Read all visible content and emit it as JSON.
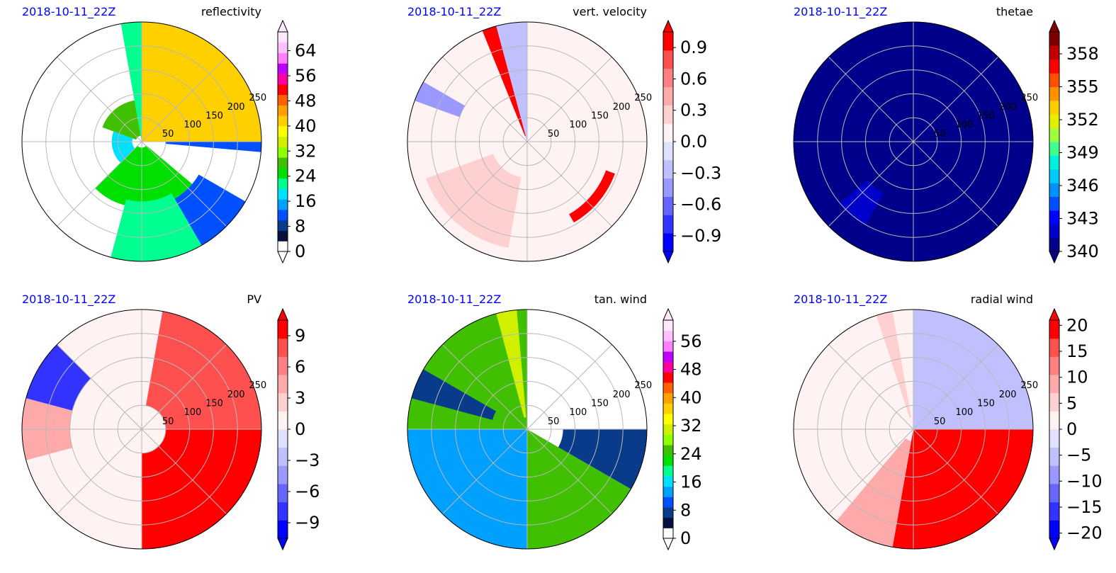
{
  "chart_data": [
    {
      "type": "heatmap",
      "projection": "polar",
      "title": "reflectivity",
      "date": "2018-10-11_22Z",
      "radial_ticks": [
        "50",
        "100",
        "150",
        "200",
        "250"
      ],
      "colorbar": {
        "ticks": [
          "0",
          "8",
          "16",
          "24",
          "32",
          "40",
          "48",
          "56",
          "64"
        ],
        "range": [
          0,
          70
        ],
        "extend": "both"
      },
      "colormap": [
        "#ffffff",
        "#081040",
        "#0a3a8a",
        "#0050ff",
        "#00a0ff",
        "#00e0ff",
        "#00ff90",
        "#00e000",
        "#40c000",
        "#90ff00",
        "#d0f000",
        "#ffff00",
        "#ffd000",
        "#ffa000",
        "#ff6000",
        "#ff0000",
        "#ff00a0",
        "#c000ff",
        "#ff80ff",
        "#ffc0ff",
        "#ffe8ff"
      ],
      "fields": [
        {
          "th1": 0,
          "th2": 90,
          "r1": 0.0,
          "r2": 1.0,
          "value": 40
        },
        {
          "th1": 90,
          "th2": 100,
          "r1": 0.0,
          "r2": 1.0,
          "value": 22
        },
        {
          "th1": 100,
          "th2": 160,
          "r1": 0.05,
          "r2": 0.35,
          "value": 28
        },
        {
          "th1": 160,
          "th2": 240,
          "r1": 0.08,
          "r2": 0.25,
          "value": 18
        },
        {
          "th1": 225,
          "th2": 320,
          "r1": 0.05,
          "r2": 0.55,
          "value": 24
        },
        {
          "th1": 255,
          "th2": 300,
          "r1": 0.5,
          "r2": 1.0,
          "value": 20
        },
        {
          "th1": 300,
          "th2": 330,
          "r1": 0.55,
          "r2": 1.0,
          "value": 12
        },
        {
          "th1": 355,
          "th2": 360,
          "r1": 0.2,
          "r2": 1.0,
          "value": 10
        }
      ]
    },
    {
      "type": "heatmap",
      "projection": "polar",
      "title": "vert. velocity",
      "date": "2018-10-11_22Z",
      "radial_ticks": [
        "50",
        "100",
        "150",
        "200",
        "250"
      ],
      "colorbar": {
        "ticks": [
          "0.9",
          "0.6",
          "0.3",
          "0.0",
          "−0.3",
          "−0.6",
          "−0.9"
        ],
        "range": [
          -1.05,
          1.05
        ],
        "extend": "both"
      },
      "colormap": [
        "#0000ff",
        "#3333ff",
        "#6666ff",
        "#9999ff",
        "#c0c0ff",
        "#e0e0ff",
        "#fff2f2",
        "#ffd0d0",
        "#ffaaaa",
        "#ff8080",
        "#ff5050",
        "#ff0000"
      ],
      "fields": [
        {
          "th1": 0,
          "th2": 360,
          "r1": 0.0,
          "r2": 1.0,
          "value": 0.05
        },
        {
          "th1": 90,
          "th2": 110,
          "r1": 0.0,
          "r2": 1.0,
          "value": -0.2
        },
        {
          "th1": 105,
          "th2": 112,
          "r1": 0.05,
          "r2": 1.0,
          "value": 0.9
        },
        {
          "th1": 150,
          "th2": 160,
          "r1": 0.6,
          "r2": 1.0,
          "value": -0.5
        },
        {
          "th1": 300,
          "th2": 340,
          "r1": 0.7,
          "r2": 0.78,
          "value": 0.9
        },
        {
          "th1": 200,
          "th2": 260,
          "r1": 0.3,
          "r2": 0.9,
          "value": 0.2
        }
      ]
    },
    {
      "type": "heatmap",
      "projection": "polar",
      "title": "thetae",
      "date": "2018-10-11_22Z",
      "radial_ticks": [
        "50",
        "100",
        "150",
        "200",
        "250"
      ],
      "colorbar": {
        "ticks": [
          "340",
          "343",
          "346",
          "349",
          "352",
          "355",
          "358"
        ],
        "range": [
          340,
          360
        ],
        "extend": "both"
      },
      "colormap": [
        "#00008a",
        "#0000cd",
        "#0000ff",
        "#0050ff",
        "#0090ff",
        "#00c8ff",
        "#00f0e0",
        "#40ff90",
        "#a0ff40",
        "#e0f000",
        "#ffd000",
        "#ff9000",
        "#ff5000",
        "#ff0000",
        "#c00000",
        "#800000"
      ],
      "fields": [
        {
          "th1": 0,
          "th2": 360,
          "r1": 0.0,
          "r2": 1.0,
          "value": 340.2
        },
        {
          "th1": 220,
          "th2": 240,
          "r1": 0.5,
          "r2": 0.8,
          "value": 341.5
        },
        {
          "th1": 340,
          "th2": 355,
          "r1": 0.35,
          "r2": 1.0,
          "value": 341.0
        }
      ]
    },
    {
      "type": "heatmap",
      "projection": "polar",
      "title": "PV",
      "date": "2018-10-11_22Z",
      "radial_ticks": [
        "50",
        "100",
        "150",
        "200",
        "250"
      ],
      "colorbar": {
        "ticks": [
          "9",
          "6",
          "3",
          "0",
          "−3",
          "−6",
          "−9"
        ],
        "range": [
          -10.5,
          10.5
        ],
        "extend": "both"
      },
      "colormap": [
        "#0000ff",
        "#3333ff",
        "#6666ff",
        "#9999ff",
        "#c0c0ff",
        "#e0e0ff",
        "#fff2f2",
        "#ffd0d0",
        "#ffaaaa",
        "#ff8080",
        "#ff5050",
        "#ff0000"
      ],
      "fields": [
        {
          "th1": 0,
          "th2": 360,
          "r1": 0.0,
          "r2": 1.0,
          "value": 0.5
        },
        {
          "th1": 0,
          "th2": 80,
          "r1": 0.2,
          "r2": 1.0,
          "value": 7
        },
        {
          "th1": 270,
          "th2": 360,
          "r1": 0.2,
          "r2": 1.0,
          "value": 10
        },
        {
          "th1": 135,
          "th2": 165,
          "r1": 0.6,
          "r2": 1.0,
          "value": -8
        },
        {
          "th1": 165,
          "th2": 195,
          "r1": 0.6,
          "r2": 1.0,
          "value": 5
        }
      ]
    },
    {
      "type": "heatmap",
      "projection": "polar",
      "title": "tan. wind",
      "date": "2018-10-11_22Z",
      "radial_ticks": [
        "50",
        "100",
        "150",
        "200",
        "250"
      ],
      "colorbar": {
        "ticks": [
          "0",
          "8",
          "16",
          "24",
          "32",
          "40",
          "48",
          "56"
        ],
        "range": [
          0,
          62
        ],
        "extend": "both"
      },
      "colormap": [
        "#ffffff",
        "#081040",
        "#0a3a8a",
        "#0050ff",
        "#00a0ff",
        "#00e0ff",
        "#00ff90",
        "#00e000",
        "#40c000",
        "#90ff00",
        "#d0f000",
        "#ffff00",
        "#ffd000",
        "#ffa000",
        "#ff6000",
        "#ff0000",
        "#ff00a0",
        "#c000ff",
        "#ff80ff",
        "#ffc0ff",
        "#ffe8ff"
      ],
      "fields": [
        {
          "th1": 0,
          "th2": 90,
          "r1": 0.0,
          "r2": 1.0,
          "value": -1
        },
        {
          "th1": 90,
          "th2": 180,
          "r1": 0.0,
          "r2": 1.0,
          "value": 26
        },
        {
          "th1": 180,
          "th2": 270,
          "r1": 0.0,
          "r2": 1.0,
          "value": 14
        },
        {
          "th1": 270,
          "th2": 330,
          "r1": 0.0,
          "r2": 1.0,
          "value": 24
        },
        {
          "th1": 330,
          "th2": 360,
          "r1": 0.3,
          "r2": 1.0,
          "value": 6
        },
        {
          "th1": 95,
          "th2": 105,
          "r1": 0.1,
          "r2": 1.0,
          "value": 32
        },
        {
          "th1": 150,
          "th2": 165,
          "r1": 0.3,
          "r2": 1.0,
          "value": 8
        }
      ]
    },
    {
      "type": "heatmap",
      "projection": "polar",
      "title": "radial wind",
      "date": "2018-10-11_22Z",
      "radial_ticks": [
        "50",
        "100",
        "150",
        "200",
        "250"
      ],
      "colorbar": {
        "ticks": [
          "20",
          "15",
          "10",
          "5",
          "0",
          "−5",
          "−10",
          "−15",
          "−20"
        ],
        "range": [
          -21,
          21
        ],
        "extend": "both"
      },
      "colormap": [
        "#0000ff",
        "#3333ff",
        "#6666ff",
        "#9999ff",
        "#c0c0ff",
        "#e0e0ff",
        "#fff2f2",
        "#ffd0d0",
        "#ffaaaa",
        "#ff8080",
        "#ff5050",
        "#ff0000"
      ],
      "fields": [
        {
          "th1": 0,
          "th2": 360,
          "r1": 0.0,
          "r2": 1.0,
          "value": 0.5
        },
        {
          "th1": 0,
          "th2": 90,
          "r1": 0.0,
          "r2": 1.0,
          "value": -6
        },
        {
          "th1": 260,
          "th2": 360,
          "r1": 0.0,
          "r2": 1.0,
          "value": 20
        },
        {
          "th1": 230,
          "th2": 260,
          "r1": 0.1,
          "r2": 1.0,
          "value": 8
        },
        {
          "th1": 100,
          "th2": 108,
          "r1": 0.1,
          "r2": 1.0,
          "value": 5
        }
      ]
    }
  ]
}
